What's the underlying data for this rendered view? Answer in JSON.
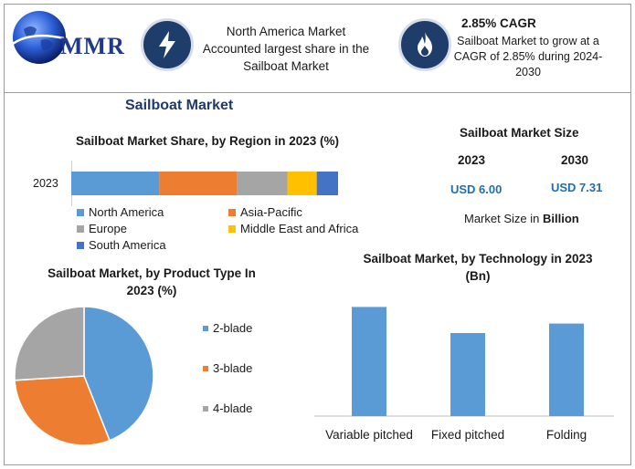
{
  "logo": {
    "text": "MMR"
  },
  "header": {
    "box1_text": "North America Market Accounted largest share in the Sailboat Market",
    "cagr_title": "2.85% CAGR",
    "cagr_text": "Sailboat Market to grow at a CAGR of 2.85% during 2024-2030",
    "icon1": "lightning-icon",
    "icon2": "flame-icon"
  },
  "page_title": "Sailboat Market",
  "market_size": {
    "title": "Sailboat Market Size",
    "year1": "2023",
    "year2": "2030",
    "value1": "USD 6.00",
    "value2": "USD 7.31",
    "unit_prefix": "Market Size in",
    "unit_bold": "Billion"
  },
  "chart_data": [
    {
      "type": "bar",
      "orientation": "horizontal-stacked",
      "title": "Sailboat Market Share, by Region in 2023 (%)",
      "categories": [
        "2023"
      ],
      "series": [
        {
          "name": "North America",
          "values": [
            33
          ],
          "color": "#5b9bd5"
        },
        {
          "name": "Asia-Pacific",
          "values": [
            29
          ],
          "color": "#ed7d31"
        },
        {
          "name": "Europe",
          "values": [
            19
          ],
          "color": "#a5a5a5"
        },
        {
          "name": "Middle East and Africa",
          "values": [
            11
          ],
          "color": "#ffc000"
        },
        {
          "name": "South America",
          "values": [
            8
          ],
          "color": "#4472c4"
        }
      ],
      "legend": "bottom"
    },
    {
      "type": "pie",
      "title": "Sailboat Market, by Product Type In 2023 (%)",
      "categories": [
        "2-blade",
        "3-blade",
        "4-blade"
      ],
      "values": [
        44,
        30,
        26
      ],
      "colors": [
        "#5b9bd5",
        "#ed7d31",
        "#a5a5a5"
      ],
      "legend": "right"
    },
    {
      "type": "bar",
      "title": "Sailboat Market, by Technology in 2023 (Bn)",
      "categories": [
        "Variable pitched",
        "Fixed pitched",
        "Folding"
      ],
      "values": [
        2.3,
        1.75,
        1.95
      ],
      "color": "#5b9bd5",
      "ylim": [
        0,
        2.5
      ]
    }
  ]
}
